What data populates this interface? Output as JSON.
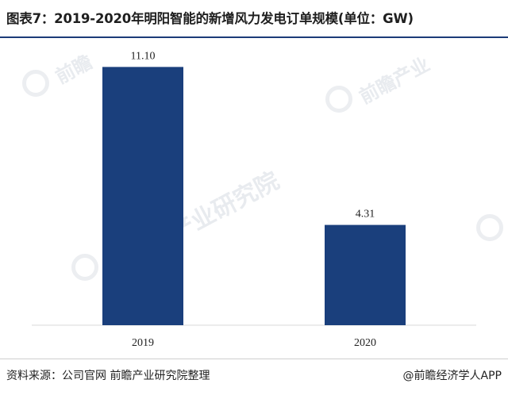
{
  "title": "图表7：2019-2020年明阳智能的新增风力发电订单规模(单位：GW)",
  "footer": {
    "source": "资料来源：公司官网 前瞻产业研究院整理",
    "credit": "@前瞻经济学人APP"
  },
  "watermark": {
    "text_1": "前瞻",
    "text_2": "前瞻产业",
    "text_3": "前瞻产业研究院"
  },
  "colors": {
    "bar": "#1a3f7c",
    "axis": "#d9d9d9",
    "title_rule": "#1c3c78"
  },
  "chart_data": {
    "type": "bar",
    "title": "2019-2020年明阳智能的新增风力发电订单规模(单位：GW)",
    "categories": [
      "2019",
      "2020"
    ],
    "values": [
      11.1,
      4.31
    ],
    "value_labels": [
      "11.10",
      "4.31"
    ],
    "unit": "GW",
    "ylim": [
      0,
      12
    ],
    "grid": false,
    "legend": "none"
  }
}
